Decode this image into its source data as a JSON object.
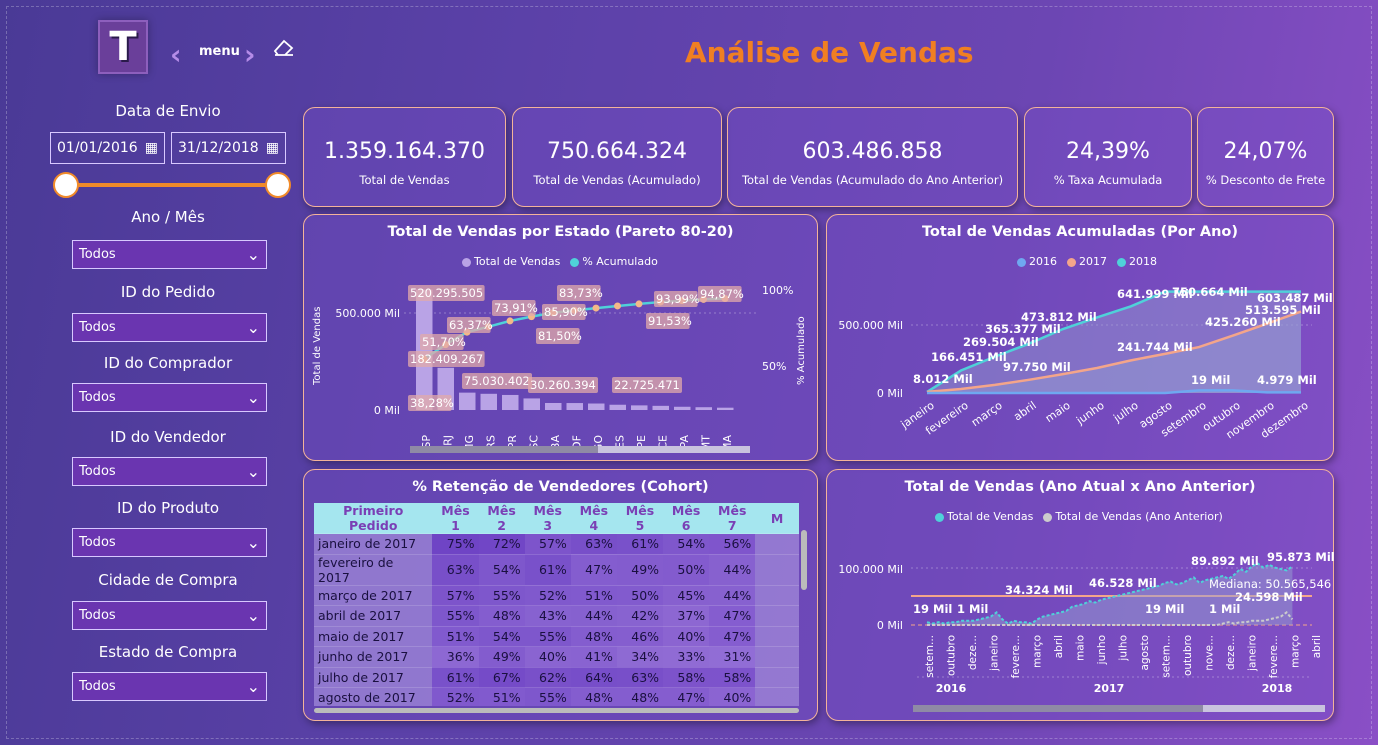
{
  "header": {
    "logo_letter": "T",
    "menu_label": "menu",
    "title": "Análise de Vendas"
  },
  "filters": {
    "date_label": "Data de Envio",
    "date_start": "01/01/2016",
    "date_end": "31/12/2018",
    "items": [
      {
        "label": "Ano / Mês",
        "value": "Todos"
      },
      {
        "label": "ID do Pedido",
        "value": "Todos"
      },
      {
        "label": "ID do Comprador",
        "value": "Todos"
      },
      {
        "label": "ID do Vendedor",
        "value": "Todos"
      },
      {
        "label": "ID do Produto",
        "value": "Todos"
      },
      {
        "label": "Cidade de Compra",
        "value": "Todos"
      },
      {
        "label": "Estado de Compra",
        "value": "Todos"
      }
    ]
  },
  "kpis": [
    {
      "value": "1.359.164.370",
      "label": "Total de Vendas"
    },
    {
      "value": "750.664.324",
      "label": "Total de Vendas (Acumulado)"
    },
    {
      "value": "603.486.858",
      "label": "Total de Vendas (Acumulado do Ano Anterior)"
    },
    {
      "value": "24,39%",
      "label": "% Taxa Acumulada"
    },
    {
      "value": "24,07%",
      "label": "% Desconto de Frete"
    }
  ],
  "colors": {
    "accent": "#f07f22",
    "cyan": "#4fd1d9",
    "salmon": "#f4a58a",
    "bar": "#b9a3e6",
    "blue2016": "#6fa8f0"
  },
  "chart_data": [
    {
      "type": "bar",
      "title": "Total de Vendas por Estado (Pareto 80-20)",
      "legend": [
        "Total de Vendas",
        "% Acumulado"
      ],
      "ylabel": "Total de Vendas",
      "y2label": "% Acumulado",
      "categories": [
        "SP",
        "RJ",
        "MG",
        "RS",
        "PR",
        "SC",
        "BA",
        "DF",
        "GO",
        "ES",
        "PE",
        "CE",
        "PA",
        "MT",
        "MA"
      ],
      "values": [
        520295505,
        182409267,
        75030402,
        70000000,
        65000000,
        50000000,
        30260394,
        30000000,
        28000000,
        22725471,
        20000000,
        18000000,
        14000000,
        12000000,
        10000000
      ],
      "pct": [
        38.28,
        51.7,
        63.37,
        68.5,
        73.91,
        77.9,
        81.5,
        83.73,
        85.9,
        87.9,
        89.8,
        91.53,
        92.9,
        93.99,
        94.87
      ],
      "labels": [
        "520.295.505",
        "182.409.267",
        "75.030.402",
        "30.260.394",
        "22.725.471",
        "38,28%",
        "51,70%",
        "63,37%",
        "73,91%",
        "81,50%",
        "83,73%",
        "85,90%",
        "91,53%",
        "93,99%",
        "94,87%"
      ],
      "y_ticks": [
        "500.000 Mil",
        "0 Mil"
      ],
      "y2_ticks": [
        "100%",
        "50%"
      ]
    },
    {
      "type": "area",
      "title": "Total de Vendas Acumuladas (Por Ano)",
      "series_names": [
        "2016",
        "2017",
        "2018"
      ],
      "categories": [
        "janeiro",
        "fevereiro",
        "março",
        "abril",
        "maio",
        "junho",
        "julho",
        "agosto",
        "setembro",
        "outubro",
        "novembro",
        "dezembro"
      ],
      "series": [
        {
          "name": "2016",
          "values": [
            0,
            0,
            0,
            0,
            0,
            0,
            0,
            0,
            19,
            19,
            4.979,
            4.979
          ]
        },
        {
          "name": "2017",
          "values": [
            8.012,
            30,
            60,
            97.75,
            140,
            185,
            241.744,
            290,
            340,
            425.26,
            513.595,
            603.487
          ]
        },
        {
          "name": "2018",
          "values": [
            8.012,
            166.451,
            269.504,
            365.377,
            473.812,
            560,
            641.999,
            750.664,
            750.664,
            750.664,
            750.664,
            750.664
          ]
        }
      ],
      "labels": [
        "8.012 Mil",
        "166.451 Mil",
        "269.504 Mil",
        "365.377 Mil",
        "473.812 Mil",
        "641.999 Mil",
        "750.664 Mil",
        "603.487 Mil",
        "513.595 Mil",
        "425.260 Mil",
        "241.744 Mil",
        "97.750 Mil",
        "19 Mil",
        "4.979 Mil"
      ],
      "y_ticks": [
        "500.000 Mil",
        "0 Mil"
      ]
    },
    {
      "type": "line",
      "title": "Total de Vendas (Ano Atual x Ano Anterior)",
      "legend": [
        "Total de Vendas",
        "Total de Vendas (Ano Anterior)"
      ],
      "labels": [
        "19 Mil",
        "1 Mil",
        "34.324 Mil",
        "46.528 Mil",
        "89.892 Mil",
        "95.873 Mil",
        "19 Mil",
        "1 Mil",
        "24.598 Mil",
        "Mediana: 50.565,546"
      ],
      "months": [
        "setem...",
        "outubro",
        "deze...",
        "janeiro",
        "fevere...",
        "março",
        "abril",
        "maio",
        "junho",
        "julho",
        "agosto",
        "setem...",
        "outubro",
        "nove...",
        "deze...",
        "janeiro",
        "fevere...",
        "março",
        "abril"
      ],
      "years": [
        "2016",
        "2017",
        "2018"
      ],
      "y_ticks": [
        "100.000 Mil",
        "0 Mil"
      ]
    }
  ],
  "cohort": {
    "title": "% Retenção de Vendedores (Cohort)",
    "headers": [
      "Primeiro Pedido",
      "Mês 1",
      "Mês 2",
      "Mês 3",
      "Mês 4",
      "Mês 5",
      "Mês 6",
      "Mês 7",
      "M"
    ],
    "rows": [
      [
        "janeiro de 2017",
        "75%",
        "72%",
        "57%",
        "63%",
        "61%",
        "54%",
        "56%"
      ],
      [
        "fevereiro de 2017",
        "63%",
        "54%",
        "61%",
        "47%",
        "49%",
        "50%",
        "44%"
      ],
      [
        "março de 2017",
        "57%",
        "55%",
        "52%",
        "51%",
        "50%",
        "45%",
        "44%"
      ],
      [
        "abril de 2017",
        "55%",
        "48%",
        "43%",
        "44%",
        "42%",
        "37%",
        "47%"
      ],
      [
        "maio de 2017",
        "51%",
        "54%",
        "55%",
        "48%",
        "46%",
        "40%",
        "47%"
      ],
      [
        "junho de 2017",
        "36%",
        "49%",
        "40%",
        "41%",
        "34%",
        "33%",
        "31%"
      ],
      [
        "julho de 2017",
        "61%",
        "67%",
        "62%",
        "64%",
        "63%",
        "58%",
        "58%"
      ],
      [
        "agosto de 2017",
        "52%",
        "51%",
        "55%",
        "48%",
        "48%",
        "47%",
        "40%"
      ]
    ]
  }
}
